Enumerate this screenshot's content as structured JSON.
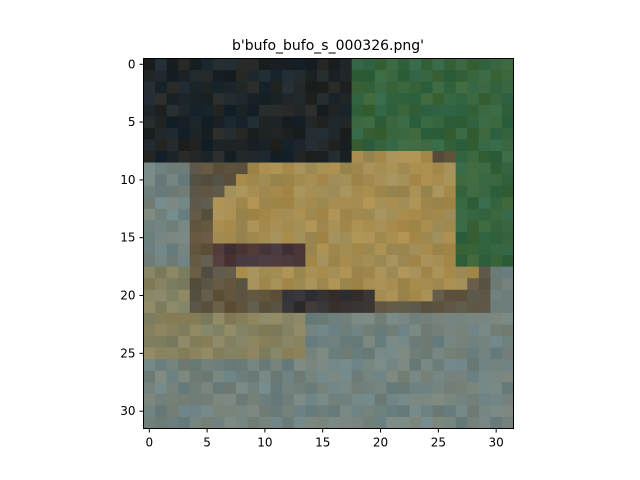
{
  "figure": {
    "title": "b'bufo_bufo_s_000326.png'"
  },
  "image": {
    "rows": 32,
    "cols": 32,
    "description": "Low-resolution 32×32 pixelated photo of a brown toad sitting on grey rocks with dark background and green foliage in upper right."
  },
  "axes": {
    "x_ticks": [
      "0",
      "5",
      "10",
      "15",
      "20",
      "25",
      "30"
    ],
    "y_ticks": [
      "0",
      "5",
      "10",
      "15",
      "20",
      "25",
      "30"
    ],
    "x_tick_values": [
      0,
      5,
      10,
      15,
      20,
      25,
      30
    ],
    "y_tick_values": [
      0,
      5,
      10,
      15,
      20,
      25,
      30
    ]
  },
  "colors": {
    "background": "#ffffff",
    "axis": "#000000"
  }
}
